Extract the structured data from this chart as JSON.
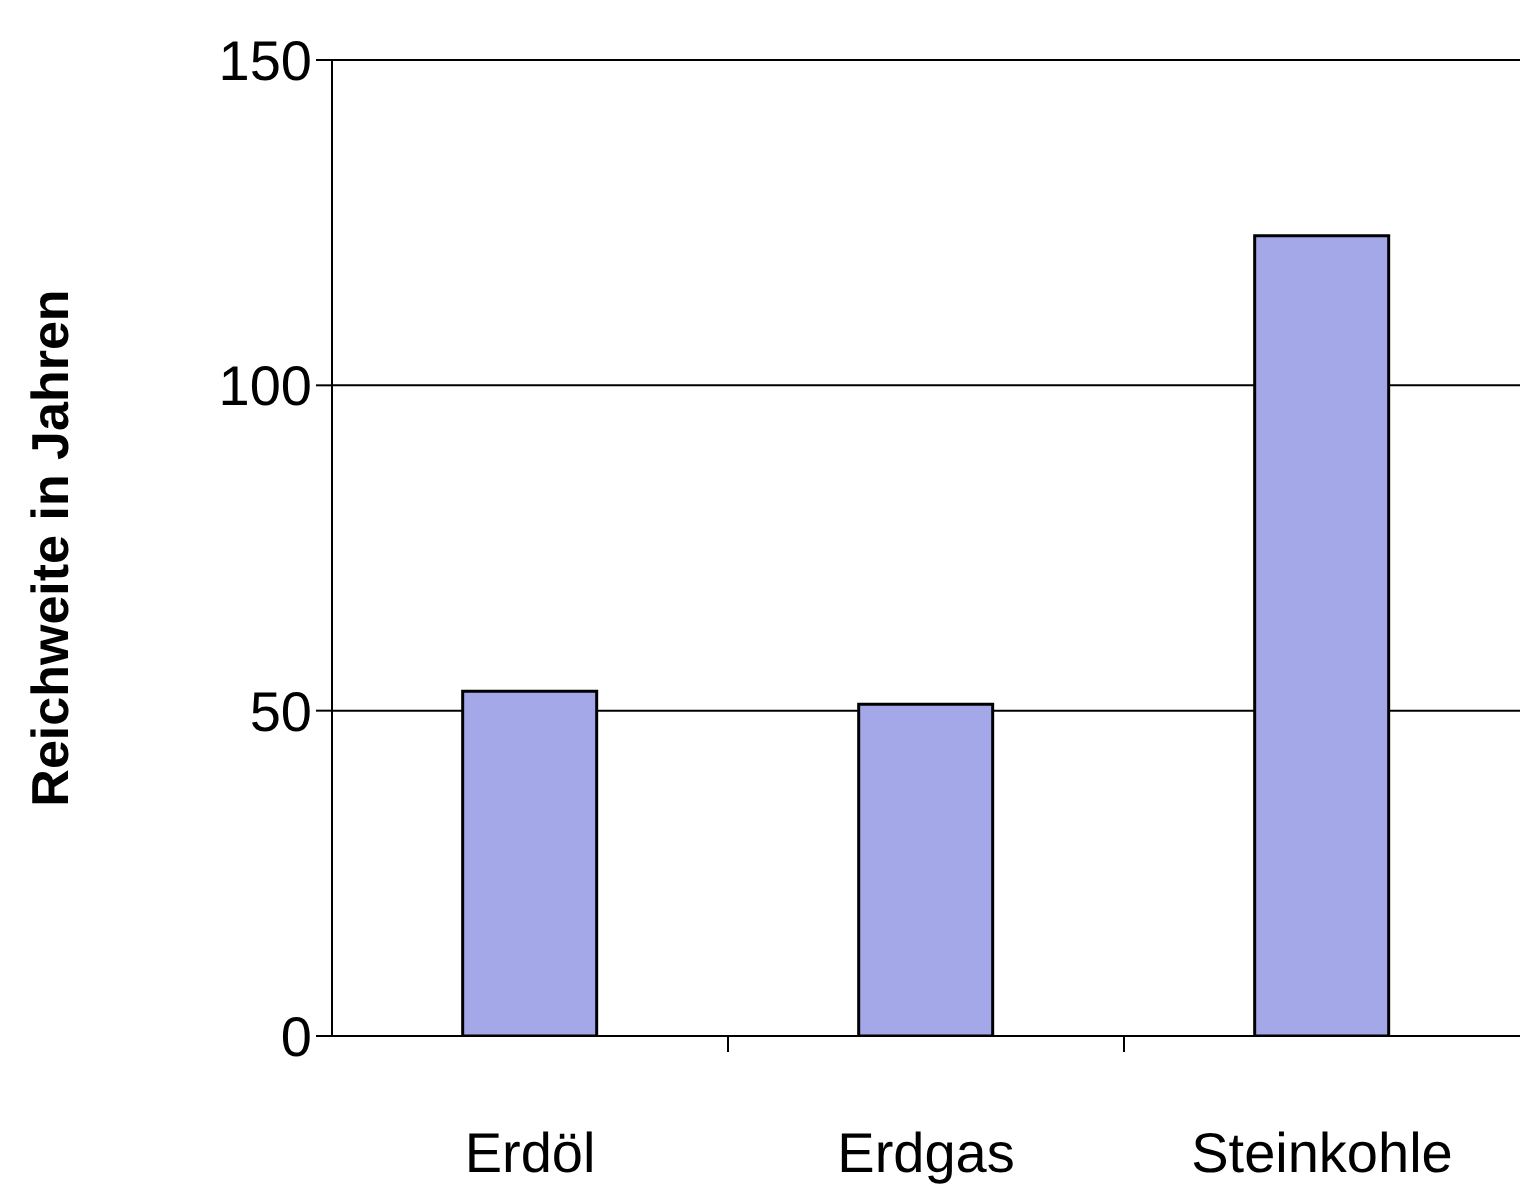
{
  "chart_data": {
    "type": "bar",
    "ylabel": "Reichweite in Jahren",
    "categories": [
      "Erdöl",
      "Erdgas",
      "Steinkohle"
    ],
    "values": [
      53,
      51,
      123
    ],
    "color": "#a5a8e8",
    "ylim": [
      0,
      150
    ],
    "yticks": [
      0,
      50,
      100,
      150
    ],
    "grid": "y",
    "legend": false
  }
}
